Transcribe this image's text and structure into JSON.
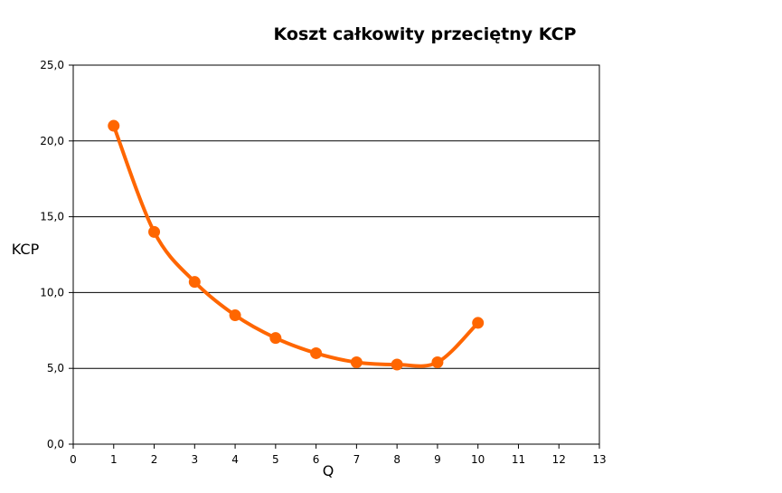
{
  "chart_data": {
    "type": "line",
    "title": "Koszt całkowity przeciętny KCP",
    "xlabel": "Q",
    "ylabel": "KCP",
    "xlim": [
      0,
      13
    ],
    "ylim": [
      0,
      25
    ],
    "x_ticks": [
      "0",
      "1",
      "2",
      "3",
      "4",
      "5",
      "6",
      "7",
      "8",
      "9",
      "10",
      "11",
      "12",
      "13"
    ],
    "y_ticks": [
      "0,0",
      "5,0",
      "10,0",
      "15,0",
      "20,0",
      "25,0"
    ],
    "grid": "horizontal",
    "legend": "none",
    "smooth": true,
    "series": [
      {
        "color": "#FF6600",
        "x": [
          1,
          2,
          3,
          4,
          5,
          6,
          7,
          8,
          9,
          10
        ],
        "y": [
          21.0,
          14.0,
          10.7,
          8.5,
          7.0,
          6.0,
          5.4,
          5.25,
          5.4,
          8.0
        ]
      }
    ]
  }
}
